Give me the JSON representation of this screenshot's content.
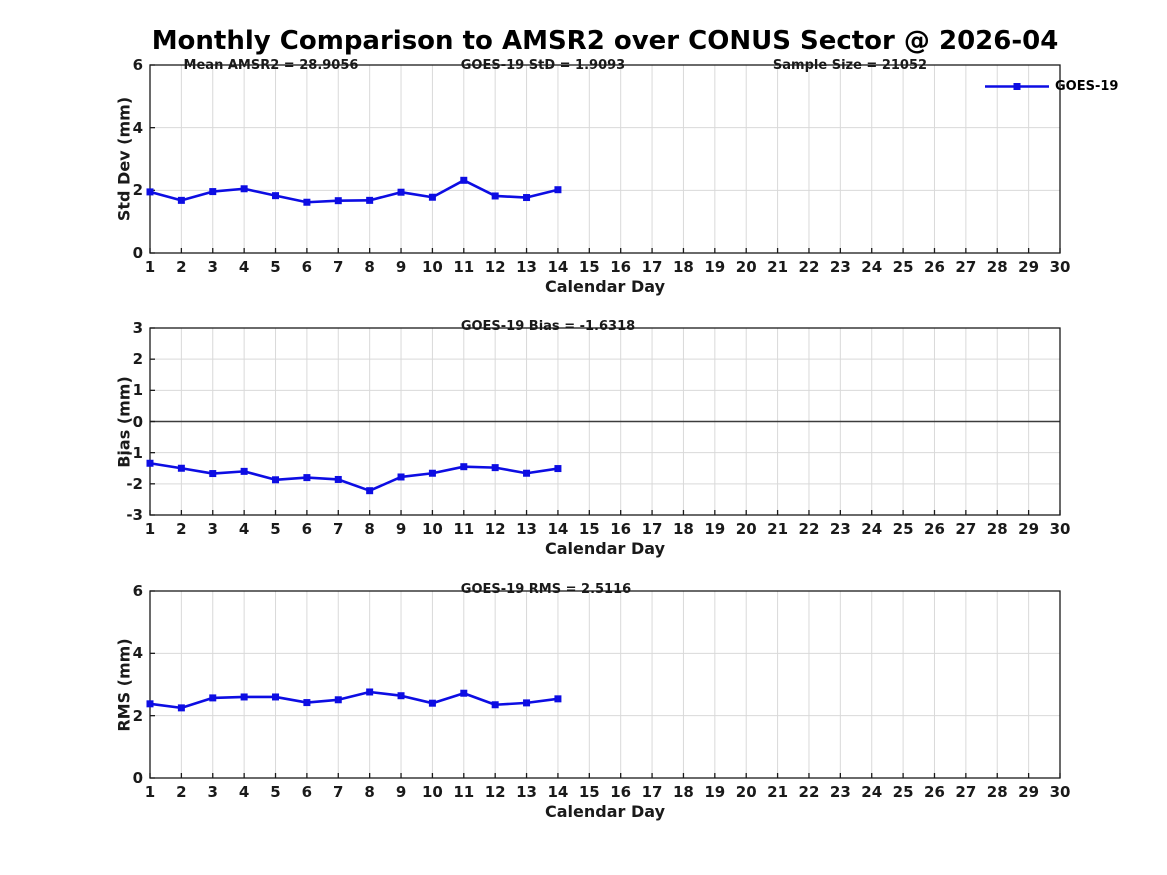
{
  "title": "Monthly Comparison to AMSR2 over CONUS Sector @ 2026-04",
  "legend": {
    "label": "GOES-19"
  },
  "colors": {
    "series": "#0D0DE3",
    "axis": "#1a1a1a",
    "grid": "#d9d9d9",
    "zero_line": "#3c3c3c",
    "text": "#1a1a1a"
  },
  "chart_data": [
    {
      "type": "line",
      "annotations": [
        "Mean AMSR2 = 28.9056",
        "GOES-19 StD = 1.9093",
        "Sample Size = 21052"
      ],
      "ylabel": "Std Dev (mm)",
      "xlabel": "Calendar Day",
      "ylim": [
        0,
        6
      ],
      "yticks": [
        0,
        2,
        4,
        6
      ],
      "xlim": [
        1,
        30
      ],
      "xticks": [
        1,
        2,
        3,
        4,
        5,
        6,
        7,
        8,
        9,
        10,
        11,
        12,
        13,
        14,
        15,
        16,
        17,
        18,
        19,
        20,
        21,
        22,
        23,
        24,
        25,
        26,
        27,
        28,
        29,
        30
      ],
      "x": [
        1,
        2,
        3,
        4,
        5,
        6,
        7,
        8,
        9,
        10,
        11,
        12,
        13,
        14
      ],
      "series": [
        {
          "name": "GOES-19",
          "marker": "square",
          "values": [
            1.95,
            1.68,
            1.96,
            2.05,
            1.83,
            1.62,
            1.67,
            1.68,
            1.94,
            1.78,
            2.32,
            1.82,
            1.77,
            2.02
          ]
        }
      ],
      "grid": true,
      "zero_line": false,
      "legend_position": "top-right-outside"
    },
    {
      "type": "line",
      "annotations": [
        "GOES-19 Bias = -1.6318"
      ],
      "ylabel": "Bias (mm)",
      "xlabel": "Calendar Day",
      "ylim": [
        -3,
        3
      ],
      "yticks": [
        -3,
        -2,
        -1,
        0,
        1,
        2,
        3
      ],
      "xlim": [
        1,
        30
      ],
      "xticks": [
        1,
        2,
        3,
        4,
        5,
        6,
        7,
        8,
        9,
        10,
        11,
        12,
        13,
        14,
        15,
        16,
        17,
        18,
        19,
        20,
        21,
        22,
        23,
        24,
        25,
        26,
        27,
        28,
        29,
        30
      ],
      "x": [
        1,
        2,
        3,
        4,
        5,
        6,
        7,
        8,
        9,
        10,
        11,
        12,
        13,
        14
      ],
      "series": [
        {
          "name": "GOES-19",
          "marker": "square",
          "values": [
            -1.34,
            -1.5,
            -1.67,
            -1.6,
            -1.87,
            -1.8,
            -1.86,
            -2.22,
            -1.78,
            -1.66,
            -1.45,
            -1.48,
            -1.66,
            -1.51
          ]
        }
      ],
      "grid": true,
      "zero_line": true
    },
    {
      "type": "line",
      "annotations": [
        "GOES-19 RMS = 2.5116"
      ],
      "ylabel": "RMS (mm)",
      "xlabel": "Calendar Day",
      "ylim": [
        0,
        6
      ],
      "yticks": [
        0,
        2,
        4,
        6
      ],
      "xlim": [
        1,
        30
      ],
      "xticks": [
        1,
        2,
        3,
        4,
        5,
        6,
        7,
        8,
        9,
        10,
        11,
        12,
        13,
        14,
        15,
        16,
        17,
        18,
        19,
        20,
        21,
        22,
        23,
        24,
        25,
        26,
        27,
        28,
        29,
        30
      ],
      "x": [
        1,
        2,
        3,
        4,
        5,
        6,
        7,
        8,
        9,
        10,
        11,
        12,
        13,
        14
      ],
      "series": [
        {
          "name": "GOES-19",
          "marker": "square",
          "values": [
            2.38,
            2.25,
            2.57,
            2.6,
            2.6,
            2.42,
            2.51,
            2.76,
            2.64,
            2.4,
            2.72,
            2.35,
            2.41,
            2.54
          ]
        }
      ],
      "grid": true,
      "zero_line": false
    }
  ]
}
